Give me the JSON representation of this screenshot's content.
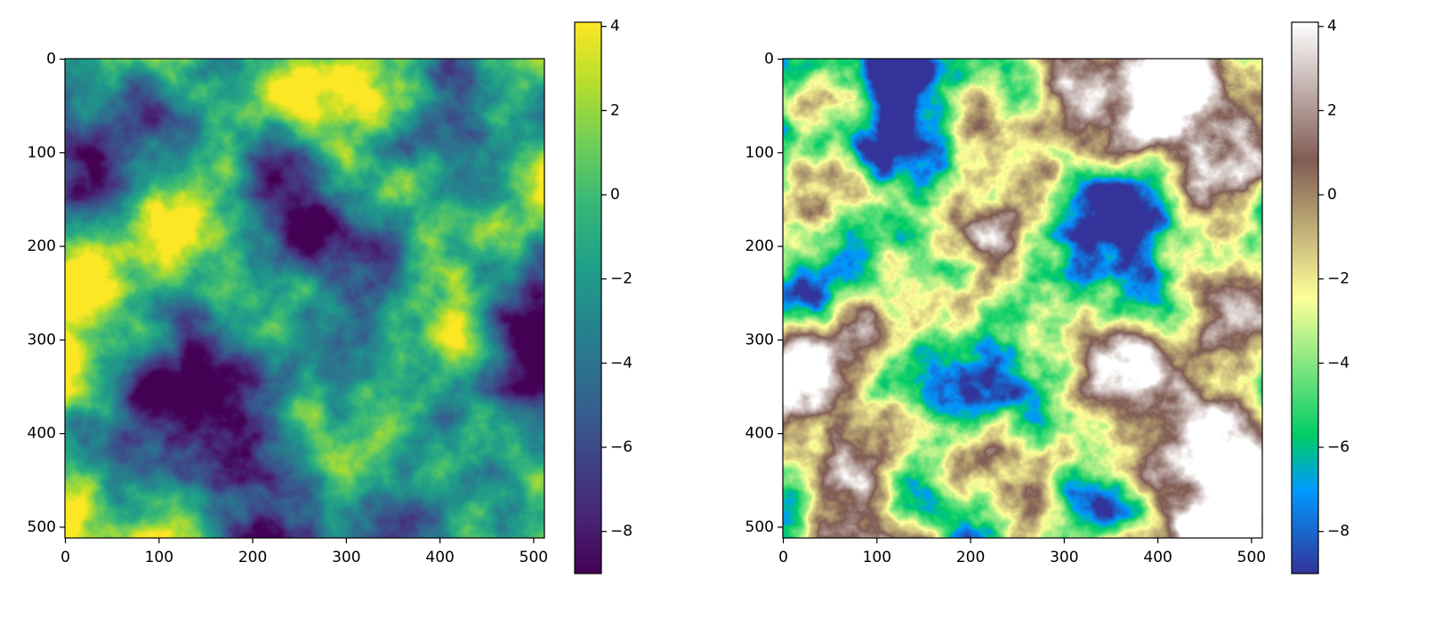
{
  "chart_data": [
    {
      "type": "heatmap",
      "colormap": "viridis",
      "xlim": [
        -0.5,
        511.5
      ],
      "xticks": [
        0,
        100,
        200,
        300,
        400,
        500
      ],
      "ylim": [
        511.5,
        -0.5
      ],
      "yticks": [
        0,
        100,
        200,
        300,
        400,
        500
      ],
      "clim": [
        -9.0,
        4.1
      ],
      "cticks": [
        {
          "value": -8,
          "label": "−8"
        },
        {
          "value": -6,
          "label": "−6"
        },
        {
          "value": -4,
          "label": "−4"
        },
        {
          "value": -2,
          "label": "−2"
        },
        0,
        2,
        4
      ]
    },
    {
      "type": "heatmap",
      "colormap": "terrain",
      "xlim": [
        -0.5,
        511.5
      ],
      "xticks": [
        0,
        100,
        200,
        300,
        400,
        500
      ],
      "ylim": [
        511.5,
        -0.5
      ],
      "yticks": [
        0,
        100,
        200,
        300,
        400,
        500
      ],
      "clim": [
        -9.0,
        4.1
      ],
      "cticks": [
        {
          "value": -8,
          "label": "−8"
        },
        {
          "value": -6,
          "label": "−6"
        },
        {
          "value": -4,
          "label": "−4"
        },
        {
          "value": -2,
          "label": "−2"
        },
        0,
        2,
        4
      ]
    }
  ]
}
